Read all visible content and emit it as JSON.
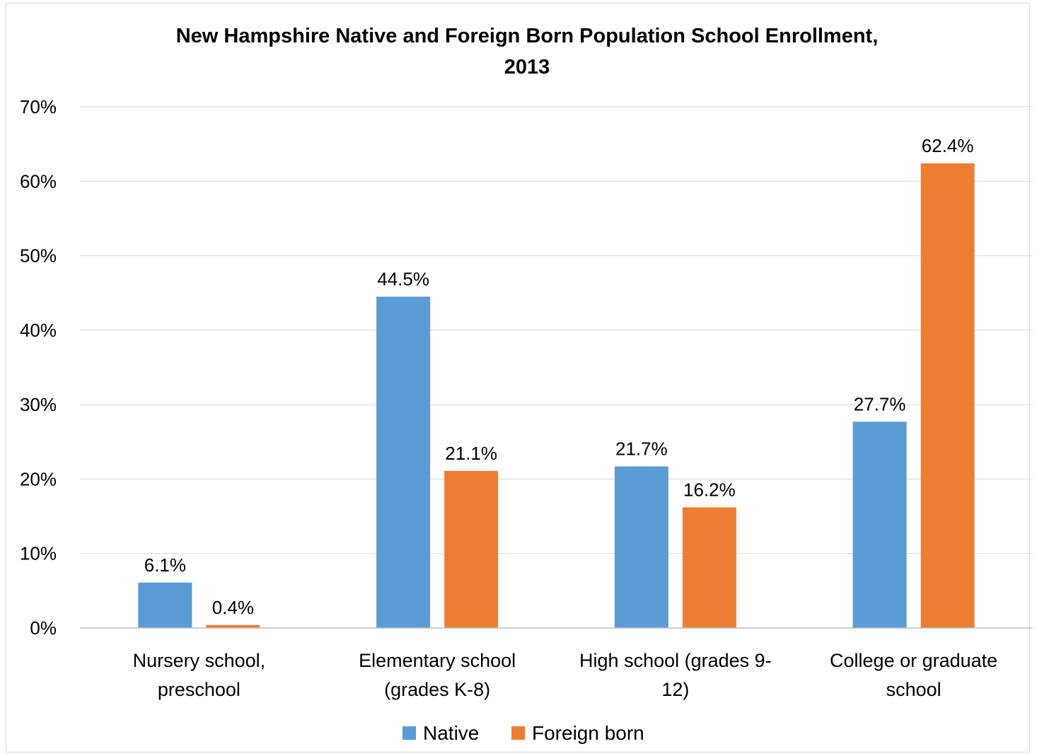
{
  "chart_data": {
    "type": "bar",
    "title": "New Hampshire Native and Foreign Born Population School Enrollment,",
    "subtitle": "2013",
    "categories": [
      [
        "Nursery school,",
        "preschool"
      ],
      [
        "Elementary school",
        "(grades K-8)"
      ],
      [
        "High school (grades 9-",
        "12)"
      ],
      [
        "College or graduate",
        "school"
      ]
    ],
    "series": [
      {
        "name": "Native",
        "color": "#5b9bd5",
        "values": [
          6.1,
          44.5,
          21.7,
          27.7
        ],
        "labels": [
          "6.1%",
          "44.5%",
          "21.7%",
          "27.7%"
        ]
      },
      {
        "name": "Foreign born",
        "color": "#ed7d31",
        "values": [
          0.4,
          21.1,
          16.2,
          62.4
        ],
        "labels": [
          "0.4%",
          "21.1%",
          "16.2%",
          "62.4%"
        ]
      }
    ],
    "ylim": [
      0,
      70
    ],
    "yticks": [
      "0%",
      "10%",
      "20%",
      "30%",
      "40%",
      "50%",
      "60%",
      "70%"
    ],
    "grid": true,
    "legend": "bottom"
  }
}
